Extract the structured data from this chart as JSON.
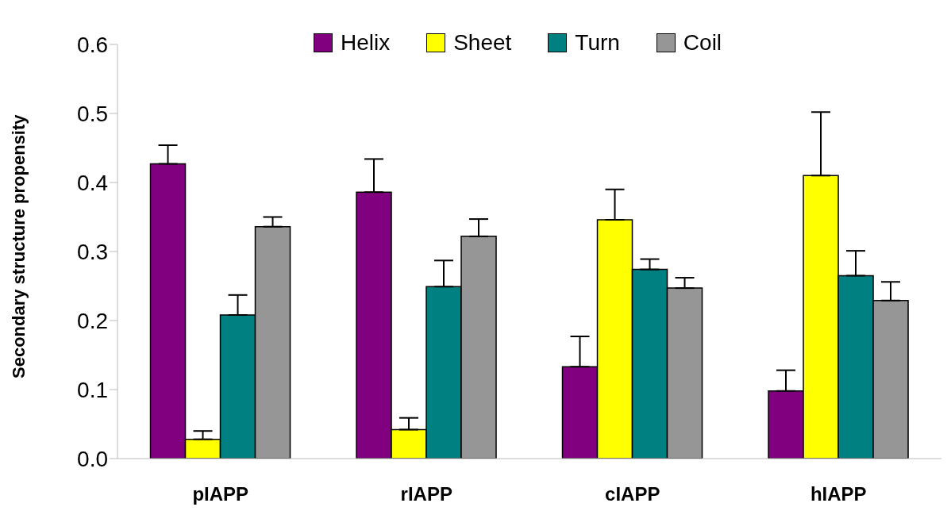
{
  "chart_data": {
    "type": "bar",
    "ylabel": "Secondary structure propensity",
    "categories": [
      "pIAPP",
      "rIAPP",
      "cIAPP",
      "hIAPP"
    ],
    "series": [
      {
        "name": "Helix",
        "color": "#800080",
        "values": [
          0.427,
          0.386,
          0.133,
          0.098
        ],
        "errors": [
          [
            0.427,
            0.454
          ],
          [
            0.386,
            0.434
          ],
          [
            0.133,
            0.177
          ],
          [
            0.098,
            0.128
          ]
        ]
      },
      {
        "name": "Sheet",
        "color": "#ffff00",
        "values": [
          0.028,
          0.042,
          0.346,
          0.41
        ],
        "errors": [
          [
            0.028,
            0.04
          ],
          [
            0.042,
            0.059
          ],
          [
            0.346,
            0.39
          ],
          [
            0.41,
            0.502
          ]
        ]
      },
      {
        "name": "Turn",
        "color": "#008080",
        "values": [
          0.208,
          0.249,
          0.274,
          0.265
        ],
        "errors": [
          [
            0.208,
            0.237
          ],
          [
            0.249,
            0.287
          ],
          [
            0.274,
            0.289
          ],
          [
            0.265,
            0.301
          ]
        ]
      },
      {
        "name": "Coil",
        "color": "#969696",
        "values": [
          0.336,
          0.322,
          0.247,
          0.229
        ],
        "errors": [
          [
            0.336,
            0.35
          ],
          [
            0.322,
            0.347
          ],
          [
            0.247,
            0.262
          ],
          [
            0.229,
            0.256
          ]
        ]
      }
    ],
    "ylim": [
      0,
      0.6
    ],
    "yticks": [
      {
        "value": 0,
        "label": "0.0"
      },
      0.1,
      0.2,
      0.3,
      0.4,
      0.5,
      0.6
    ],
    "grid": false,
    "legend": "top"
  }
}
